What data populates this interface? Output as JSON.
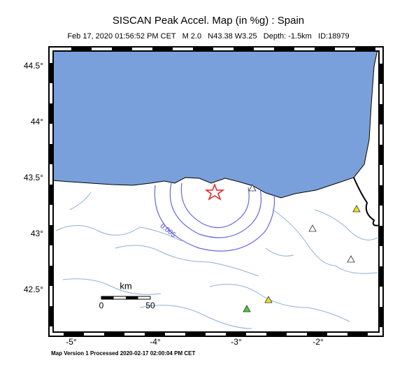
{
  "header": {
    "title": "SISCAN Peak Accel. Map (in %g) : Spain",
    "subtitle": "Feb 17, 2020 01:56:52 PM CET   M 2.0   N43.38 W3.25   Depth: -1.5km   ID:18979"
  },
  "map": {
    "lat_labels": [
      "44.5°",
      "44°",
      "43.5°",
      "43°",
      "42.5°"
    ],
    "lon_labels": [
      "-5°",
      "-4°",
      "-3°",
      "-2°"
    ],
    "contour_label": "0.005",
    "scale": {
      "unit": "km",
      "labels": [
        "0",
        "50"
      ]
    }
  },
  "footer": "Map Version 1 Processed 2020-02-17 02:00:04 PM CET"
}
